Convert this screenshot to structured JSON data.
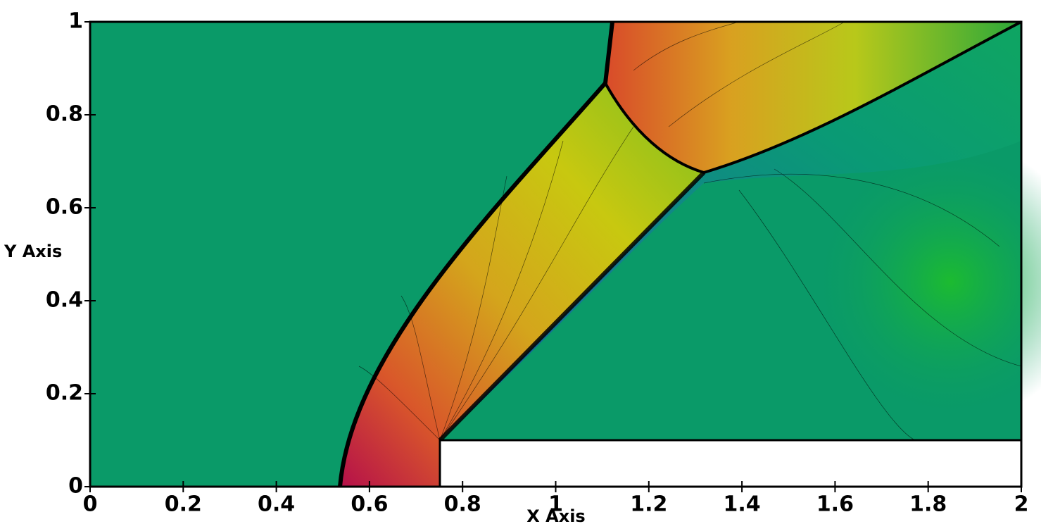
{
  "chart_data": {
    "type": "contour",
    "x_label": "X Axis",
    "y_label": "Y Axis",
    "xlim": [
      0,
      2
    ],
    "ylim": [
      0,
      1
    ],
    "xticks": [
      0,
      0.2,
      0.4,
      0.6,
      0.8,
      1,
      1.2,
      1.4,
      1.6,
      1.8,
      2
    ],
    "yticks": [
      0,
      0.2,
      0.4,
      0.6,
      0.8,
      1
    ]
  }
}
